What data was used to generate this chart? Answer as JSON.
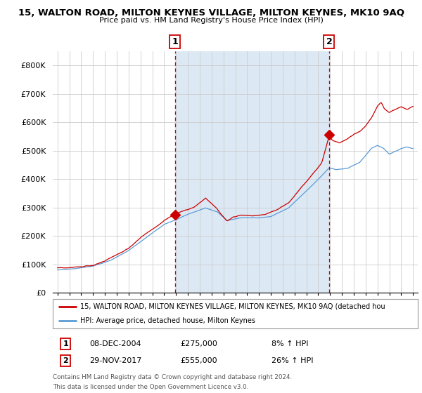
{
  "title": "15, WALTON ROAD, MILTON KEYNES VILLAGE, MILTON KEYNES, MK10 9AQ",
  "subtitle": "Price paid vs. HM Land Registry's House Price Index (HPI)",
  "sale1_year_val": 2004.92,
  "sale1_price": 275000,
  "sale1_date": "08-DEC-2004",
  "sale1_hpi_pct": "8% ↑ HPI",
  "sale2_year_val": 2017.92,
  "sale2_price": 555000,
  "sale2_date": "29-NOV-2017",
  "sale2_hpi_pct": "26% ↑ HPI",
  "hpi_line_color": "#5b9bd5",
  "price_line_color": "#cc0000",
  "dashed_line_color": "#cc0000",
  "shade_color": "#dce9f5",
  "legend_line1": "15, WALTON ROAD, MILTON KEYNES VILLAGE, MILTON KEYNES, MK10 9AQ (detached hou",
  "legend_line2": "HPI: Average price, detached house, Milton Keynes",
  "footer_line1": "Contains HM Land Registry data © Crown copyright and database right 2024.",
  "footer_line2": "This data is licensed under the Open Government Licence v3.0.",
  "ylim": [
    0,
    850000
  ],
  "yticks": [
    0,
    100000,
    200000,
    300000,
    400000,
    500000,
    600000,
    700000,
    800000
  ],
  "xlim_left": 1994.6,
  "xlim_right": 2025.4
}
